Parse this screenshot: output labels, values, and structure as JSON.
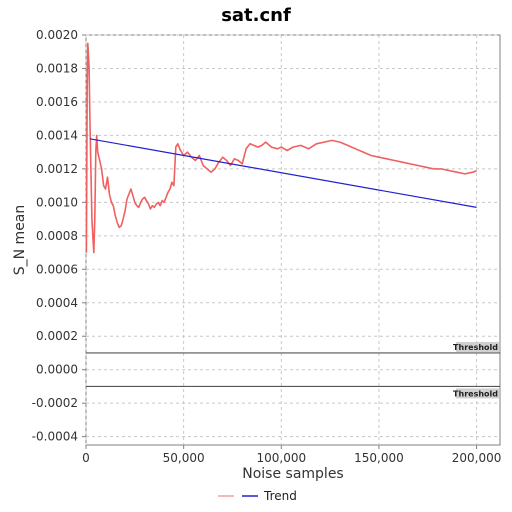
{
  "chart_data": {
    "type": "line",
    "title": "sat.cnf",
    "xlabel": "Noise samples",
    "ylabel": "S_N mean",
    "xlim": [
      0,
      212000
    ],
    "ylim": [
      -0.00045,
      0.002
    ],
    "x_ticks": [
      0,
      50000,
      100000,
      150000,
      200000
    ],
    "x_tick_labels": [
      "0",
      "50,000",
      "100,000",
      "150,000",
      "200,000"
    ],
    "y_ticks": [
      0.002,
      0.0018,
      0.0016,
      0.0014,
      0.0012,
      0.001,
      0.0008,
      0.0006,
      0.0004,
      0.0002,
      0.0,
      -0.0002,
      -0.0004
    ],
    "y_tick_labels": [
      "0.0020",
      "0.0018",
      "0.0016",
      "0.0014",
      "0.0012",
      "0.0010",
      "0.0008",
      "0.0006",
      "0.0004",
      "0.0002",
      "0.0000",
      "-0.0002",
      "-0.0004"
    ],
    "grid": true,
    "legend_position": "bottom-center",
    "series": [
      {
        "name": "",
        "color": "#f06060",
        "x": [
          200,
          600,
          900,
          1200,
          1600,
          2000,
          2500,
          3000,
          3500,
          4000,
          4500,
          5000,
          5500,
          6000,
          7000,
          8000,
          9000,
          10000,
          11000,
          12000,
          13000,
          14000,
          15000,
          16000,
          17000,
          18000,
          19000,
          20000,
          21000,
          22000,
          23000,
          24000,
          25000,
          26000,
          27000,
          28000,
          29000,
          30000,
          31000,
          32000,
          33000,
          34000,
          35000,
          36000,
          37000,
          38000,
          39000,
          40000,
          41000,
          42000,
          43000,
          44000,
          45000,
          46000,
          47000,
          48000,
          50000,
          52000,
          54000,
          56000,
          58000,
          60000,
          62000,
          64000,
          66000,
          68000,
          70000,
          72000,
          74000,
          76000,
          78000,
          80000,
          82000,
          84000,
          86000,
          88000,
          90000,
          92000,
          95000,
          98000,
          100000,
          103000,
          106000,
          110000,
          114000,
          118000,
          122000,
          126000,
          130000,
          134000,
          138000,
          142000,
          146000,
          150000,
          154000,
          158000,
          162000,
          166000,
          170000,
          174000,
          178000,
          182000,
          186000,
          190000,
          194000,
          198000,
          200000
        ],
        "y": [
          0.0007,
          0.0017,
          0.00195,
          0.0019,
          0.0018,
          0.0015,
          0.0012,
          0.0009,
          0.0008,
          0.0007,
          0.0009,
          0.0013,
          0.0014,
          0.0013,
          0.00125,
          0.0012,
          0.0011,
          0.00108,
          0.00115,
          0.00105,
          0.001,
          0.00098,
          0.00092,
          0.00088,
          0.00085,
          0.00086,
          0.0009,
          0.00095,
          0.00102,
          0.00105,
          0.00108,
          0.00104,
          0.001,
          0.00098,
          0.00097,
          0.001,
          0.00102,
          0.00103,
          0.00101,
          0.00099,
          0.00096,
          0.00098,
          0.00097,
          0.00099,
          0.001,
          0.00098,
          0.00101,
          0.001,
          0.00103,
          0.00106,
          0.00108,
          0.00112,
          0.0011,
          0.00133,
          0.00135,
          0.00132,
          0.00128,
          0.0013,
          0.00127,
          0.00125,
          0.00128,
          0.00122,
          0.0012,
          0.00118,
          0.0012,
          0.00124,
          0.00127,
          0.00125,
          0.00122,
          0.00126,
          0.00125,
          0.00123,
          0.00132,
          0.00135,
          0.00134,
          0.00133,
          0.00134,
          0.00136,
          0.00133,
          0.00132,
          0.00133,
          0.00131,
          0.00133,
          0.00134,
          0.00132,
          0.00135,
          0.00136,
          0.00137,
          0.00136,
          0.00134,
          0.00132,
          0.0013,
          0.00128,
          0.00127,
          0.00126,
          0.00125,
          0.00124,
          0.00123,
          0.00122,
          0.00121,
          0.0012,
          0.0012,
          0.00119,
          0.00118,
          0.00117,
          0.00118,
          0.00119
        ]
      },
      {
        "name": "Trend",
        "color": "#2020d0",
        "x": [
          2000,
          200000
        ],
        "y": [
          0.00138,
          0.00097
        ]
      }
    ],
    "thresholds": [
      {
        "label": "Threshold",
        "value": 0.0001
      },
      {
        "label": "Threshold",
        "value": -0.0001
      }
    ]
  }
}
